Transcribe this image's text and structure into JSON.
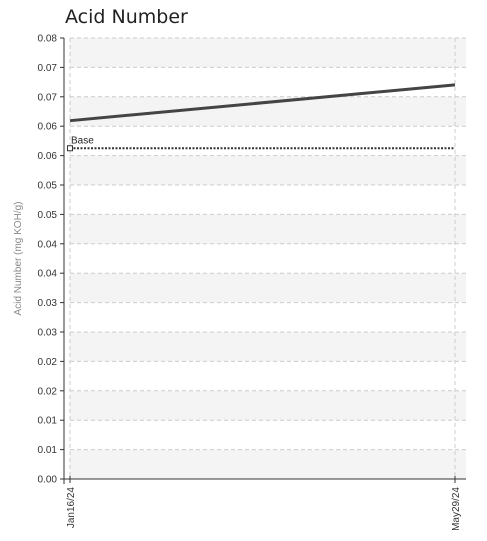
{
  "chart_data": {
    "type": "line",
    "title": "Acid Number",
    "ylabel": "Acid Number (mg KOH/g)",
    "xlabel": "",
    "ylim": [
      0,
      0.08
    ],
    "y_ticks": [
      "0.00",
      "0.01",
      "0.01",
      "0.02",
      "0.02",
      "0.03",
      "0.03",
      "0.04",
      "0.04",
      "0.05",
      "0.05",
      "0.06",
      "0.06",
      "0.07",
      "0.07",
      "0.08"
    ],
    "x_ticks": [
      "Jan16/24",
      "May29/24"
    ],
    "grid": true,
    "series": [
      {
        "values": [
          0.065,
          0.0715
        ],
        "color": "#444444"
      }
    ],
    "baseline": {
      "name": "Base",
      "value": 0.06,
      "color": "#333333"
    }
  }
}
